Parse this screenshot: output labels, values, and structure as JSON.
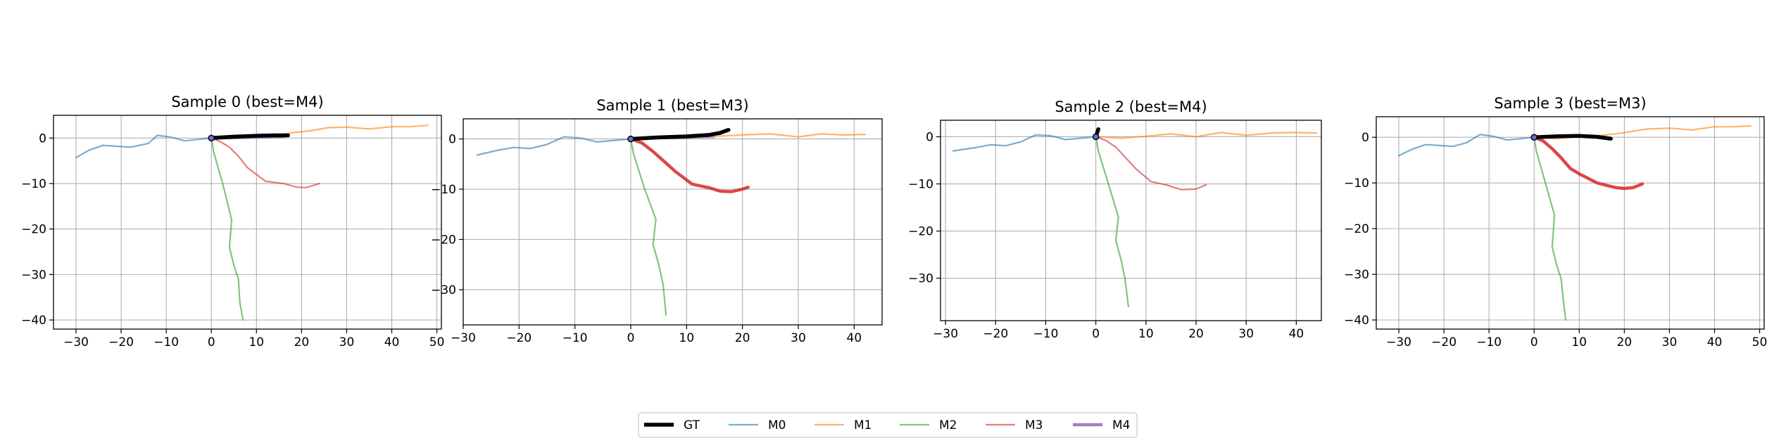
{
  "series_styles": {
    "GT": {
      "color": "#000000",
      "width": 5.5,
      "alpha": 1.0
    },
    "M0": {
      "color": "#1f77b4",
      "width": 2.2,
      "alpha": 0.6
    },
    "M1": {
      "color": "#ff7f0e",
      "width": 2.2,
      "alpha": 0.6
    },
    "M2": {
      "color": "#2ca02c",
      "width": 2.2,
      "alpha": 0.6
    },
    "M3": {
      "color": "#d62728",
      "width": 2.2,
      "alpha": 0.6
    },
    "M4": {
      "color": "#9467bd",
      "width": 2.2,
      "alpha": 0.6
    }
  },
  "legend": [
    "GT",
    "M0",
    "M1",
    "M2",
    "M3",
    "M4"
  ],
  "chart_data": [
    {
      "type": "line",
      "title": "Sample 0 (best=M4)",
      "best": "M4",
      "xlim": [
        -35,
        51
      ],
      "ylim": [
        -42,
        5
      ],
      "xticks": [
        -30,
        -20,
        -10,
        0,
        10,
        20,
        30,
        40,
        50
      ],
      "yticks": [
        0,
        -10,
        -20,
        -30,
        -40
      ],
      "grid": true,
      "series": [
        {
          "name": "M0",
          "x": [
            0,
            -3,
            -6,
            -9,
            -12,
            -14,
            -18,
            -21,
            -24,
            -27,
            -30
          ],
          "y": [
            0,
            -0.3,
            -0.6,
            0.2,
            0.6,
            -1.2,
            -2.0,
            -1.8,
            -1.6,
            -2.6,
            -4.3
          ]
        },
        {
          "name": "M1",
          "x": [
            0,
            5,
            10,
            14,
            18,
            22,
            26,
            30,
            35,
            40,
            44,
            48
          ],
          "y": [
            0,
            0.3,
            0.3,
            0.5,
            1.2,
            1.6,
            2.3,
            2.4,
            2.0,
            2.5,
            2.5,
            2.8
          ]
        },
        {
          "name": "M2",
          "x": [
            0,
            0.5,
            1.5,
            2.5,
            3.5,
            4.5,
            4,
            5,
            6,
            6.3,
            7
          ],
          "y": [
            0,
            -3,
            -6.5,
            -10,
            -14,
            -18,
            -24,
            -28,
            -31,
            -36,
            -40
          ]
        },
        {
          "name": "M3",
          "x": [
            0,
            2,
            4,
            6,
            8,
            12,
            16,
            19,
            21,
            24
          ],
          "y": [
            0,
            -0.8,
            -2,
            -4,
            -6.5,
            -9.5,
            -10,
            -10.8,
            -10.9,
            -10
          ]
        },
        {
          "name": "M4",
          "x": [
            0,
            5,
            10,
            16
          ],
          "y": [
            0,
            0.1,
            0.2,
            0.3
          ]
        },
        {
          "name": "GT",
          "x": [
            0,
            5,
            10,
            14,
            17
          ],
          "y": [
            0,
            0.3,
            0.5,
            0.6,
            0.6
          ]
        }
      ]
    },
    {
      "type": "line",
      "title": "Sample 1 (best=M3)",
      "best": "M3",
      "xlim": [
        -30,
        45
      ],
      "ylim": [
        -37,
        4
      ],
      "xticks": [
        -30,
        -20,
        -10,
        0,
        10,
        20,
        30,
        40
      ],
      "yticks": [
        0,
        -10,
        -20,
        -30
      ],
      "grid": true,
      "series": [
        {
          "name": "M0",
          "x": [
            0,
            -3,
            -6,
            -9,
            -12,
            -15,
            -18,
            -21,
            -24,
            -27.5
          ],
          "y": [
            0,
            -0.3,
            -0.6,
            0.2,
            0.4,
            -1.1,
            -1.9,
            -1.7,
            -2.3,
            -3.2
          ]
        },
        {
          "name": "M1",
          "x": [
            0,
            5,
            10,
            15,
            20,
            25,
            30,
            34,
            38,
            42
          ],
          "y": [
            0,
            0.2,
            0.4,
            0.5,
            0.8,
            1.0,
            0.4,
            1.0,
            0.8,
            0.9
          ]
        },
        {
          "name": "M2",
          "x": [
            0,
            0.5,
            1.5,
            2.5,
            3.5,
            4.5,
            4,
            5,
            5.8,
            6.3
          ],
          "y": [
            0,
            -3,
            -6.5,
            -10,
            -13,
            -16,
            -21,
            -25,
            -29,
            -35
          ]
        },
        {
          "name": "M3",
          "x": [
            0,
            2,
            4,
            6,
            8,
            11,
            14,
            16,
            18,
            20,
            21
          ],
          "y": [
            0,
            -0.8,
            -2.5,
            -4.5,
            -6.5,
            -9,
            -9.7,
            -10.4,
            -10.5,
            -10,
            -9.6
          ]
        },
        {
          "name": "M4",
          "x": [
            0,
            5,
            10,
            15
          ],
          "y": [
            0,
            0.1,
            0.2,
            0.3
          ]
        },
        {
          "name": "GT",
          "x": [
            0,
            5,
            10,
            14,
            16,
            17.5
          ],
          "y": [
            0,
            0.3,
            0.5,
            0.8,
            1.2,
            1.8
          ]
        }
      ]
    },
    {
      "type": "line",
      "title": "Sample 2 (best=M4)",
      "best": "M4",
      "xlim": [
        -31,
        45
      ],
      "ylim": [
        -39,
        3.5
      ],
      "xticks": [
        -30,
        -20,
        -10,
        0,
        10,
        20,
        30,
        40
      ],
      "yticks": [
        0,
        -10,
        -20,
        -30
      ],
      "grid": true,
      "series": [
        {
          "name": "M0",
          "x": [
            0,
            -3,
            -6,
            -9,
            -12,
            -15,
            -18,
            -21,
            -24,
            -28.5
          ],
          "y": [
            0,
            -0.3,
            -0.6,
            0.2,
            0.4,
            -1.1,
            -1.9,
            -1.7,
            -2.3,
            -3.0
          ]
        },
        {
          "name": "M1",
          "x": [
            0,
            5,
            10,
            15,
            20,
            25,
            30,
            35,
            40,
            44
          ],
          "y": [
            0,
            -0.3,
            0.1,
            0.6,
            0.0,
            0.9,
            0.3,
            0.8,
            0.9,
            0.8
          ]
        },
        {
          "name": "M2",
          "x": [
            0,
            0.5,
            1.5,
            2.5,
            3.5,
            4.5,
            4,
            5,
            5.8,
            6.5
          ],
          "y": [
            0,
            -3,
            -6.5,
            -10,
            -13.5,
            -17,
            -22,
            -26,
            -30,
            -36
          ]
        },
        {
          "name": "M3",
          "x": [
            0,
            2,
            4,
            6,
            8,
            11,
            14,
            17,
            20,
            22
          ],
          "y": [
            0,
            -0.8,
            -2.2,
            -4.5,
            -6.8,
            -9.5,
            -10.2,
            -11.2,
            -11.1,
            -10.2
          ]
        },
        {
          "name": "M4",
          "x": [
            0,
            0.2,
            0.4
          ],
          "y": [
            0,
            0.6,
            1.1
          ]
        },
        {
          "name": "GT",
          "x": [
            0,
            0.3,
            0.5
          ],
          "y": [
            0,
            1.0,
            1.6
          ]
        }
      ]
    },
    {
      "type": "line",
      "title": "Sample 3 (best=M3)",
      "best": "M3",
      "xlim": [
        -35,
        51
      ],
      "ylim": [
        -42,
        4.5
      ],
      "xticks": [
        -30,
        -20,
        -10,
        0,
        10,
        20,
        30,
        40,
        50
      ],
      "yticks": [
        0,
        -10,
        -20,
        -30,
        -40
      ],
      "grid": true,
      "series": [
        {
          "name": "M0",
          "x": [
            0,
            -3,
            -6,
            -9,
            -12,
            -15,
            -18,
            -21,
            -24,
            -27,
            -30
          ],
          "y": [
            0,
            -0.3,
            -0.6,
            0.2,
            0.6,
            -1.2,
            -2.0,
            -1.8,
            -1.6,
            -2.6,
            -4.0
          ]
        },
        {
          "name": "M1",
          "x": [
            0,
            5,
            10,
            15,
            20,
            25,
            30,
            35,
            40,
            44,
            48
          ],
          "y": [
            0,
            -0.3,
            0.2,
            0.4,
            1.0,
            1.8,
            2.0,
            1.6,
            2.3,
            2.3,
            2.5
          ]
        },
        {
          "name": "M2",
          "x": [
            0,
            0.5,
            1.5,
            2.5,
            3.5,
            4.5,
            4,
            5,
            6,
            6.5,
            7
          ],
          "y": [
            0,
            -3,
            -6.5,
            -10,
            -13.5,
            -17,
            -24,
            -28,
            -31,
            -36,
            -40
          ]
        },
        {
          "name": "M3",
          "x": [
            0,
            2,
            4,
            6,
            8,
            10,
            14,
            18,
            20,
            22,
            24
          ],
          "y": [
            0,
            -0.8,
            -2.5,
            -4.5,
            -6.8,
            -8.0,
            -10,
            -11,
            -11.2,
            -11,
            -10.2
          ]
        },
        {
          "name": "M4",
          "x": [
            0,
            5,
            10,
            15
          ],
          "y": [
            0,
            0.1,
            0.1,
            0.2
          ]
        },
        {
          "name": "GT",
          "x": [
            0,
            5,
            10,
            14,
            17
          ],
          "y": [
            0,
            0.2,
            0.3,
            0.1,
            -0.3
          ]
        }
      ]
    }
  ]
}
